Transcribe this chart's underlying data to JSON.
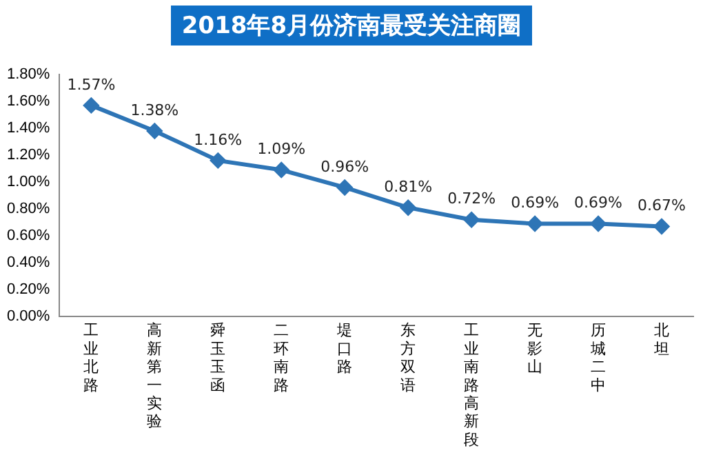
{
  "chart_data": {
    "type": "line",
    "title": "2018年8月份济南最受关注商圈",
    "categories": [
      "工业北路",
      "高新第一实验",
      "舜玉玉函",
      "二环南路",
      "堤口路",
      "东方双语",
      "工业南路高新段",
      "无影山",
      "历城二中",
      "北坦"
    ],
    "series": [
      {
        "color": "#2e75b6",
        "values": [
          1.57,
          1.38,
          1.16,
          1.09,
          0.96,
          0.81,
          0.72,
          0.69,
          0.69,
          0.67
        ],
        "value_labels": [
          "1.57%",
          "1.38%",
          "1.16%",
          "1.09%",
          "0.96%",
          "0.81%",
          "0.72%",
          "0.69%",
          "0.69%",
          "0.67%"
        ]
      }
    ],
    "ylim": [
      0,
      1.8
    ],
    "yticks": [
      {
        "value": 0,
        "label": "0.00%"
      },
      {
        "value": 0.2,
        "label": "0.20%"
      },
      {
        "value": 0.4,
        "label": "0.40%"
      },
      {
        "value": 0.6,
        "label": "0.60%"
      },
      {
        "value": 0.8,
        "label": "0.80%"
      },
      {
        "value": 1,
        "label": "1.00%"
      },
      {
        "value": 1.2,
        "label": "1.20%"
      },
      {
        "value": 1.4,
        "label": "1.40%"
      },
      {
        "value": 1.6,
        "label": "1.60%"
      },
      {
        "value": 1.8,
        "label": "1.80%"
      }
    ],
    "grid": false,
    "legend": false,
    "marker": "diamond",
    "line_style": "solid"
  }
}
